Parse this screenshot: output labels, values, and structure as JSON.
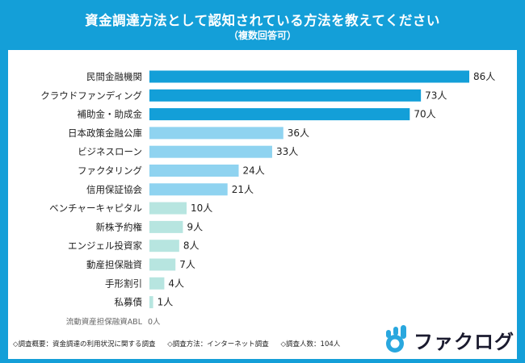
{
  "header": {
    "title": "資金調達方法として認知されている方法を教えてください",
    "subtitle": "（複数回答可）"
  },
  "chart_data": {
    "type": "bar",
    "orientation": "horizontal",
    "categories": [
      "民間金融機関",
      "クラウドファンディング",
      "補助金・助成金",
      "日本政策金融公庫",
      "ビジネスローン",
      "ファクタリング",
      "信用保証協会",
      "ベンチャーキャピタル",
      "新株予約権",
      "エンジェル投資家",
      "動産担保融資",
      "手形割引",
      "私募債",
      "流動資産担保融資ABL"
    ],
    "values": [
      86,
      73,
      70,
      36,
      33,
      24,
      21,
      10,
      9,
      8,
      7,
      4,
      1,
      0
    ],
    "value_labels": [
      "86人",
      "73人",
      "70人",
      "36人",
      "33人",
      "24人",
      "21人",
      "10人",
      "9人",
      "8人",
      "7人",
      "4人",
      "1人",
      "0人"
    ],
    "bar_colors": [
      "#139fd8",
      "#139fd8",
      "#139fd8",
      "#8fd3f0",
      "#8fd3f0",
      "#8fd3f0",
      "#8fd3f0",
      "#b7e5e0",
      "#b7e5e0",
      "#b7e5e0",
      "#b7e5e0",
      "#b7e5e0",
      "#b7e5e0",
      "#b7e5e0"
    ],
    "xlim": [
      0,
      86
    ],
    "grid": false,
    "legend": "none"
  },
  "footnote": {
    "items": [
      "◇調査概要：資金調達の利用状況に関する調査",
      "◇調査方法：インターネット調査",
      "◇調査人数：104人"
    ]
  },
  "brand": {
    "name": "ファクログ",
    "logo_icon": "ok-hand-icon",
    "logo_color": "#29a7de"
  }
}
